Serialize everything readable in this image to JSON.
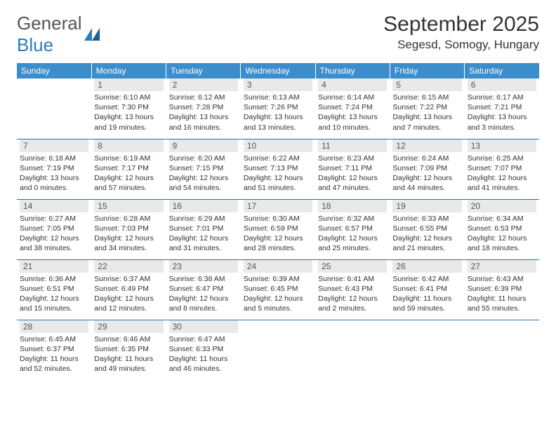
{
  "logo": {
    "line1": "General",
    "line2": "Blue"
  },
  "title": "September 2025",
  "location": "Segesd, Somogy, Hungary",
  "colors": {
    "header_bg": "#3c8dcc",
    "daynum_bg": "#e9e9e9",
    "row_divider": "#2a6fa8",
    "logo_blue": "#2a7bc0"
  },
  "weekdays": [
    "Sunday",
    "Monday",
    "Tuesday",
    "Wednesday",
    "Thursday",
    "Friday",
    "Saturday"
  ],
  "weeks": [
    [
      null,
      {
        "n": "1",
        "sr": "Sunrise: 6:10 AM",
        "ss": "Sunset: 7:30 PM",
        "d1": "Daylight: 13 hours",
        "d2": "and 19 minutes."
      },
      {
        "n": "2",
        "sr": "Sunrise: 6:12 AM",
        "ss": "Sunset: 7:28 PM",
        "d1": "Daylight: 13 hours",
        "d2": "and 16 minutes."
      },
      {
        "n": "3",
        "sr": "Sunrise: 6:13 AM",
        "ss": "Sunset: 7:26 PM",
        "d1": "Daylight: 13 hours",
        "d2": "and 13 minutes."
      },
      {
        "n": "4",
        "sr": "Sunrise: 6:14 AM",
        "ss": "Sunset: 7:24 PM",
        "d1": "Daylight: 13 hours",
        "d2": "and 10 minutes."
      },
      {
        "n": "5",
        "sr": "Sunrise: 6:15 AM",
        "ss": "Sunset: 7:22 PM",
        "d1": "Daylight: 13 hours",
        "d2": "and 7 minutes."
      },
      {
        "n": "6",
        "sr": "Sunrise: 6:17 AM",
        "ss": "Sunset: 7:21 PM",
        "d1": "Daylight: 13 hours",
        "d2": "and 3 minutes."
      }
    ],
    [
      {
        "n": "7",
        "sr": "Sunrise: 6:18 AM",
        "ss": "Sunset: 7:19 PM",
        "d1": "Daylight: 13 hours",
        "d2": "and 0 minutes."
      },
      {
        "n": "8",
        "sr": "Sunrise: 6:19 AM",
        "ss": "Sunset: 7:17 PM",
        "d1": "Daylight: 12 hours",
        "d2": "and 57 minutes."
      },
      {
        "n": "9",
        "sr": "Sunrise: 6:20 AM",
        "ss": "Sunset: 7:15 PM",
        "d1": "Daylight: 12 hours",
        "d2": "and 54 minutes."
      },
      {
        "n": "10",
        "sr": "Sunrise: 6:22 AM",
        "ss": "Sunset: 7:13 PM",
        "d1": "Daylight: 12 hours",
        "d2": "and 51 minutes."
      },
      {
        "n": "11",
        "sr": "Sunrise: 6:23 AM",
        "ss": "Sunset: 7:11 PM",
        "d1": "Daylight: 12 hours",
        "d2": "and 47 minutes."
      },
      {
        "n": "12",
        "sr": "Sunrise: 6:24 AM",
        "ss": "Sunset: 7:09 PM",
        "d1": "Daylight: 12 hours",
        "d2": "and 44 minutes."
      },
      {
        "n": "13",
        "sr": "Sunrise: 6:25 AM",
        "ss": "Sunset: 7:07 PM",
        "d1": "Daylight: 12 hours",
        "d2": "and 41 minutes."
      }
    ],
    [
      {
        "n": "14",
        "sr": "Sunrise: 6:27 AM",
        "ss": "Sunset: 7:05 PM",
        "d1": "Daylight: 12 hours",
        "d2": "and 38 minutes."
      },
      {
        "n": "15",
        "sr": "Sunrise: 6:28 AM",
        "ss": "Sunset: 7:03 PM",
        "d1": "Daylight: 12 hours",
        "d2": "and 34 minutes."
      },
      {
        "n": "16",
        "sr": "Sunrise: 6:29 AM",
        "ss": "Sunset: 7:01 PM",
        "d1": "Daylight: 12 hours",
        "d2": "and 31 minutes."
      },
      {
        "n": "17",
        "sr": "Sunrise: 6:30 AM",
        "ss": "Sunset: 6:59 PM",
        "d1": "Daylight: 12 hours",
        "d2": "and 28 minutes."
      },
      {
        "n": "18",
        "sr": "Sunrise: 6:32 AM",
        "ss": "Sunset: 6:57 PM",
        "d1": "Daylight: 12 hours",
        "d2": "and 25 minutes."
      },
      {
        "n": "19",
        "sr": "Sunrise: 6:33 AM",
        "ss": "Sunset: 6:55 PM",
        "d1": "Daylight: 12 hours",
        "d2": "and 21 minutes."
      },
      {
        "n": "20",
        "sr": "Sunrise: 6:34 AM",
        "ss": "Sunset: 6:53 PM",
        "d1": "Daylight: 12 hours",
        "d2": "and 18 minutes."
      }
    ],
    [
      {
        "n": "21",
        "sr": "Sunrise: 6:36 AM",
        "ss": "Sunset: 6:51 PM",
        "d1": "Daylight: 12 hours",
        "d2": "and 15 minutes."
      },
      {
        "n": "22",
        "sr": "Sunrise: 6:37 AM",
        "ss": "Sunset: 6:49 PM",
        "d1": "Daylight: 12 hours",
        "d2": "and 12 minutes."
      },
      {
        "n": "23",
        "sr": "Sunrise: 6:38 AM",
        "ss": "Sunset: 6:47 PM",
        "d1": "Daylight: 12 hours",
        "d2": "and 8 minutes."
      },
      {
        "n": "24",
        "sr": "Sunrise: 6:39 AM",
        "ss": "Sunset: 6:45 PM",
        "d1": "Daylight: 12 hours",
        "d2": "and 5 minutes."
      },
      {
        "n": "25",
        "sr": "Sunrise: 6:41 AM",
        "ss": "Sunset: 6:43 PM",
        "d1": "Daylight: 12 hours",
        "d2": "and 2 minutes."
      },
      {
        "n": "26",
        "sr": "Sunrise: 6:42 AM",
        "ss": "Sunset: 6:41 PM",
        "d1": "Daylight: 11 hours",
        "d2": "and 59 minutes."
      },
      {
        "n": "27",
        "sr": "Sunrise: 6:43 AM",
        "ss": "Sunset: 6:39 PM",
        "d1": "Daylight: 11 hours",
        "d2": "and 55 minutes."
      }
    ],
    [
      {
        "n": "28",
        "sr": "Sunrise: 6:45 AM",
        "ss": "Sunset: 6:37 PM",
        "d1": "Daylight: 11 hours",
        "d2": "and 52 minutes."
      },
      {
        "n": "29",
        "sr": "Sunrise: 6:46 AM",
        "ss": "Sunset: 6:35 PM",
        "d1": "Daylight: 11 hours",
        "d2": "and 49 minutes."
      },
      {
        "n": "30",
        "sr": "Sunrise: 6:47 AM",
        "ss": "Sunset: 6:33 PM",
        "d1": "Daylight: 11 hours",
        "d2": "and 46 minutes."
      },
      null,
      null,
      null,
      null
    ]
  ]
}
